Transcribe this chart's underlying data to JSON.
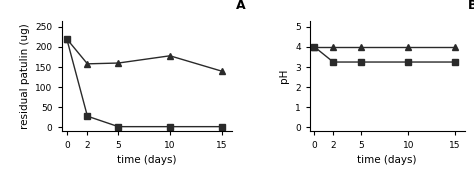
{
  "time_days": [
    0,
    2,
    5,
    10,
    15
  ],
  "panel_A": {
    "title": "A",
    "square_series": [
      220,
      28,
      2,
      2,
      2
    ],
    "triangle_series": [
      220,
      158,
      160,
      178,
      140
    ],
    "ylabel": "residual patulin (ug)",
    "xlabel": "time (days)",
    "ylim": [
      -10,
      265
    ],
    "yticks": [
      0,
      50,
      100,
      150,
      200,
      250
    ]
  },
  "panel_B": {
    "title": "B",
    "square_series": [
      4.0,
      3.25,
      3.25,
      3.25,
      3.25
    ],
    "triangle_series": [
      4.0,
      4.0,
      4.0,
      4.0,
      4.0
    ],
    "ylabel": "pH",
    "xlabel": "time (days)",
    "ylim": [
      -0.2,
      5.3
    ],
    "yticks": [
      0,
      1,
      2,
      3,
      4,
      5
    ]
  },
  "xticks": [
    0,
    2,
    5,
    10,
    15
  ],
  "line_color": "#2a2a2a",
  "marker_square": "s",
  "marker_triangle": "^",
  "markersize": 4,
  "linewidth": 1.0,
  "tick_labelsize": 6.5,
  "axis_labelsize": 7.5,
  "title_fontsize": 9
}
